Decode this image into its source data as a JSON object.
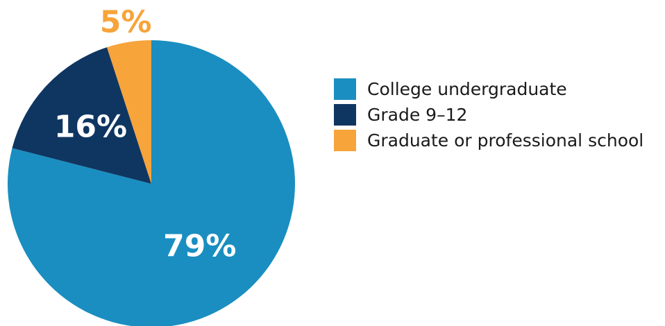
{
  "chart_data": {
    "type": "pie",
    "slices": [
      {
        "name": "College undergraduate",
        "value": 79,
        "label": "79%",
        "color": "#1A8EC0",
        "label_color": "#ffffff"
      },
      {
        "name": "Grade 9–12",
        "value": 16,
        "label": "16%",
        "color": "#0F3661",
        "label_color": "#ffffff"
      },
      {
        "name": "Graduate or professional school",
        "value": 5,
        "label": "5%",
        "color": "#F7A43B",
        "label_color": "#F7A43B"
      }
    ],
    "legend_position": "right"
  }
}
